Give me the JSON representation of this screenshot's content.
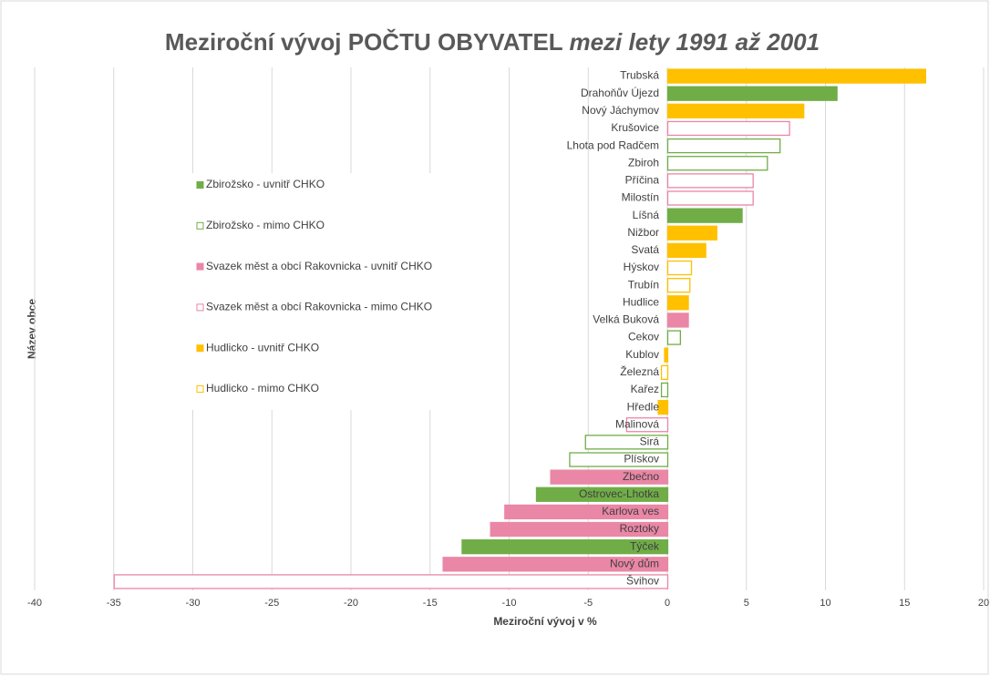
{
  "chart_data": {
    "type": "bar",
    "orientation": "horizontal",
    "title": "Meziroční vývoj POČTU OBYVATEL",
    "title_emphasis": "mezi lety 1991 až 2001",
    "x_label": "Meziroční vývoj v %",
    "y_label": "Název obce",
    "categories": [
      "Trubská",
      "Drahoňův Újezd",
      "Nový Jáchymov",
      "Krušovice",
      "Lhota pod Radčem",
      "Zbiroh",
      "Příčina",
      "Milostín",
      "Líšná",
      "Nižbor",
      "Svatá",
      "Hýskov",
      "Trubín",
      "Hudlice",
      "Velká Buková",
      "Cekov",
      "Kublov",
      "Železná",
      "Kařez",
      "Hředle",
      "Malinová",
      "Sirá",
      "Plískov",
      "Zbečno",
      "Ostrovec-Lhotka",
      "Karlova ves",
      "Roztoky",
      "Týček",
      "Nový dům",
      "Švihov"
    ],
    "series": [
      {
        "name": "Zbirožsko - uvnitř CHKO",
        "color": "#70ad47",
        "filled": true,
        "values": [
          null,
          10.7,
          null,
          null,
          null,
          null,
          null,
          null,
          4.7,
          null,
          null,
          null,
          null,
          null,
          null,
          null,
          null,
          null,
          null,
          null,
          null,
          null,
          null,
          null,
          -8.3,
          null,
          null,
          -13.0,
          null,
          null
        ]
      },
      {
        "name": "Zbirožsko - mimo CHKO",
        "color": "#70ad47",
        "filled": false,
        "values": [
          null,
          null,
          null,
          null,
          7.1,
          6.3,
          null,
          null,
          null,
          null,
          null,
          null,
          null,
          null,
          null,
          0.8,
          null,
          null,
          -0.4,
          null,
          null,
          -5.2,
          -6.2,
          null,
          null,
          null,
          null,
          null,
          null,
          null
        ]
      },
      {
        "name": "Svazek měst a obcí Rakovnicka - uvnitř CHKO",
        "color": "#ea86a6",
        "filled": true,
        "values": [
          null,
          null,
          null,
          null,
          null,
          null,
          null,
          null,
          null,
          null,
          null,
          null,
          null,
          null,
          1.3,
          null,
          null,
          null,
          null,
          null,
          null,
          null,
          null,
          -7.4,
          null,
          -10.3,
          -11.2,
          null,
          -14.2,
          null
        ]
      },
      {
        "name": "Svazek měst a obcí Rakovnicka - mimo CHKO",
        "color": "#ea86a6",
        "filled": false,
        "values": [
          null,
          null,
          null,
          7.7,
          null,
          null,
          5.4,
          5.4,
          null,
          null,
          null,
          null,
          null,
          null,
          null,
          null,
          null,
          null,
          null,
          null,
          -2.6,
          null,
          null,
          null,
          null,
          null,
          null,
          null,
          null,
          -35.0
        ]
      },
      {
        "name": "Hudlicko - uvnitř CHKO",
        "color": "#ffc000",
        "filled": true,
        "values": [
          16.3,
          null,
          8.6,
          null,
          null,
          null,
          null,
          null,
          null,
          3.1,
          2.4,
          null,
          null,
          1.3,
          null,
          null,
          -0.2,
          null,
          null,
          -0.6,
          null,
          null,
          null,
          null,
          null,
          null,
          null,
          null,
          null,
          null
        ]
      },
      {
        "name": "Hudlicko - mimo CHKO",
        "color": "#ffc000",
        "filled": false,
        "values": [
          null,
          null,
          null,
          null,
          null,
          null,
          null,
          null,
          null,
          null,
          null,
          1.5,
          1.4,
          null,
          null,
          null,
          null,
          -0.4,
          null,
          null,
          null,
          null,
          null,
          null,
          null,
          null,
          null,
          null,
          null,
          null
        ]
      }
    ],
    "xlim": [
      -40,
      20
    ],
    "xticks": [
      -40,
      -35,
      -30,
      -25,
      -20,
      -15,
      -10,
      -5,
      0,
      5,
      10,
      15,
      20
    ],
    "grid": true,
    "legend": "left"
  }
}
